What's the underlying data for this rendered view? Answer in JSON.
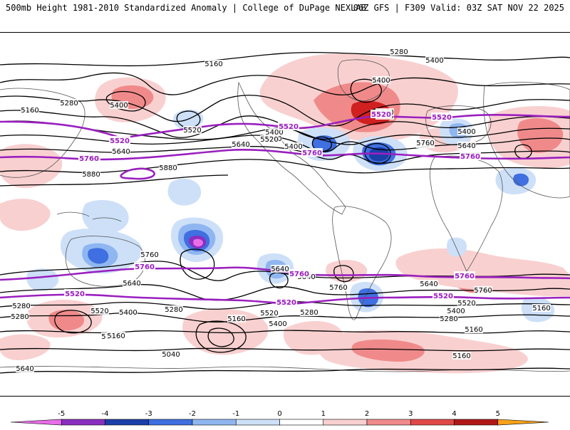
{
  "header": {
    "left_title": "500mb Height 1981-2010 Standardized Anomaly | College of DuPage NEXLAB",
    "right_title": "06Z GFS | F309 Valid: 03Z SAT NOV 22 2025"
  },
  "contour_labels": {
    "black": [
      "5160",
      "5280",
      "5400",
      "5160",
      "5280",
      "5400",
      "5520",
      "5640",
      "5400",
      "5640",
      "5520",
      "5400",
      "5640",
      "5760",
      "5880",
      "5400",
      "5640",
      "5760",
      "5520",
      "5760",
      "5880",
      "5640",
      "5400",
      "5760",
      "5640",
      "5640",
      "5640",
      "5760",
      "5760",
      "5640",
      "5520",
      "5400",
      "5280",
      "5160",
      "5280",
      "5520",
      "5400",
      "5280",
      "5160",
      "5040",
      "5280",
      "5160",
      "5520",
      "5400",
      "5280",
      "5160",
      "5160",
      "5640",
      "5160"
    ],
    "magenta": [
      "5520",
      "5520",
      "5520",
      "5520",
      "5760",
      "5760",
      "5760",
      "5760",
      "5760",
      "5760",
      "5520",
      "5520",
      "5520"
    ]
  },
  "colorbar": {
    "ticks": [
      "-5",
      "-4",
      "-3",
      "-2",
      "-1",
      "0",
      "1",
      "2",
      "3",
      "4",
      "5"
    ],
    "colors": [
      "#e86ee8",
      "#8a2fc0",
      "#1a3fa8",
      "#3f6fe0",
      "#8fb6f0",
      "#cde0f8",
      "#ffffff",
      "#f9d0d0",
      "#f08a8a",
      "#e04848",
      "#b01818",
      "#f7a21a"
    ]
  },
  "anomaly_colors": {
    "light_red": "#f9d0d0",
    "mid_red": "#f08a8a",
    "dark_red": "#d02020",
    "light_blue": "#cde0f8",
    "mid_blue": "#8fb6f0",
    "dark_blue": "#3f6fe0",
    "deep_blue": "#1a3fa8",
    "purple": "#8a2fc0",
    "magenta": "#e86ee8",
    "contour_magenta": "#9a1fbf"
  }
}
